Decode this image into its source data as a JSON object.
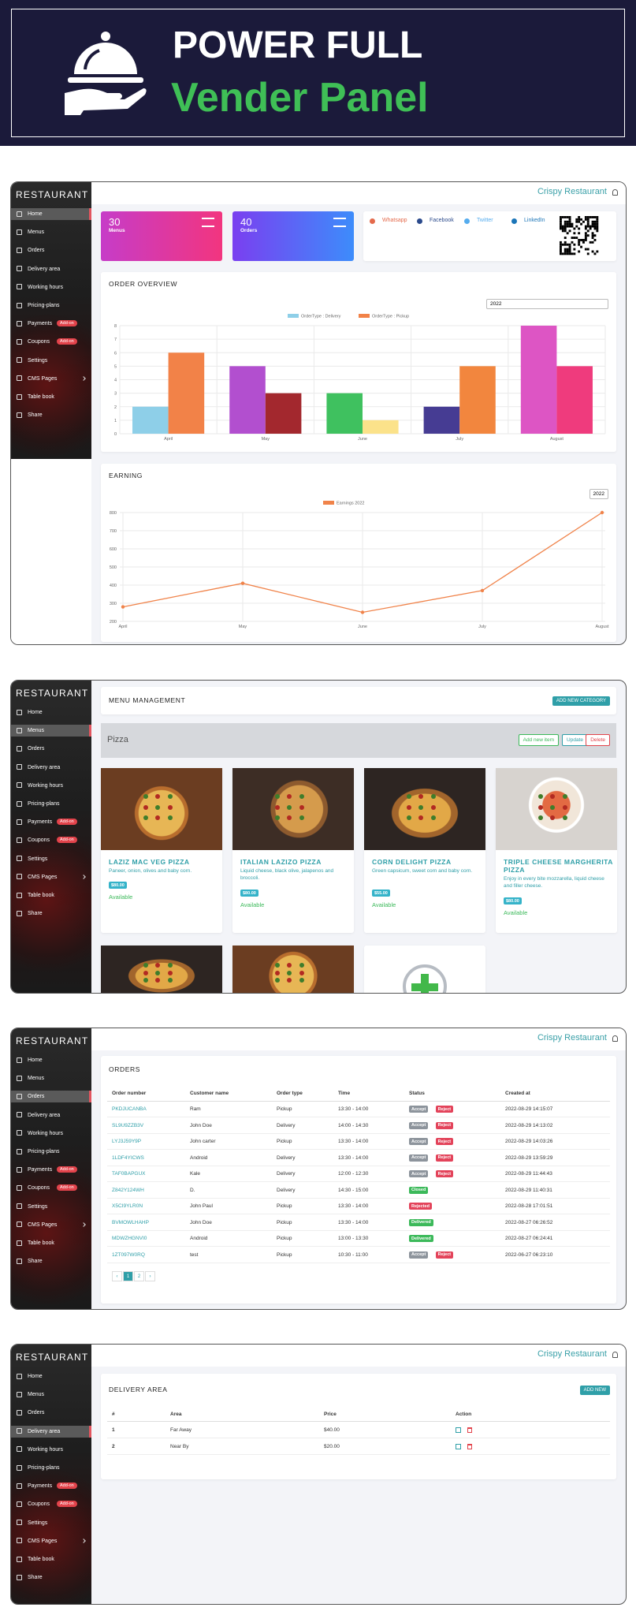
{
  "banner": {
    "line1": "POWER FULL",
    "line2": "Vender Panel"
  },
  "sidebar": {
    "brand": "RESTAURANT",
    "items": [
      "Home",
      "Menus",
      "Orders",
      "Delivery area",
      "Working hours",
      "Pricing-plans",
      "Payments",
      "Coupons",
      "Settings",
      "CMS Pages",
      "Table book",
      "Share"
    ],
    "badge": "Add-on"
  },
  "header": {
    "restaurant": "Crispy Restaurant"
  },
  "dashboard": {
    "stats": [
      {
        "value": 30,
        "label": "Menus"
      },
      {
        "value": 40,
        "label": "Orders"
      }
    ],
    "share": [
      "Whatsapp",
      "Facebook",
      "Twitter",
      "LinkedIn"
    ],
    "order_chart": {
      "type": "bar",
      "title": "ORDER OVERVIEW",
      "year": "2022",
      "categories": [
        "April",
        "May",
        "June",
        "July",
        "August"
      ],
      "series": [
        {
          "name": "OrderType : Delivery",
          "color": "#8ecfe8",
          "values": [
            2,
            5,
            3,
            2,
            8
          ],
          "bar_colors": [
            "#8ecfe8",
            "#b24fcf",
            "#3fc15f",
            "#463c93",
            "#dd55c4"
          ]
        },
        {
          "name": "OrderType : Pickup",
          "color": "#f28248",
          "values": [
            6,
            3,
            1,
            5,
            5
          ],
          "bar_colors": [
            "#f28248",
            "#a3282e",
            "#fbe28a",
            "#f2863e",
            "#ef3b7d"
          ]
        }
      ],
      "ylim": [
        0,
        8
      ],
      "yticks": [
        0,
        1,
        2,
        3,
        4,
        5,
        6,
        7,
        8
      ],
      "grid": true
    },
    "earning_chart": {
      "type": "line",
      "title": "EARNING",
      "year": "2022",
      "categories": [
        "April",
        "May",
        "June",
        "July",
        "August"
      ],
      "series": [
        {
          "name": "Earnings 2022",
          "color": "#f0834a",
          "values": [
            280,
            410,
            250,
            370,
            800
          ]
        }
      ],
      "ylim": [
        200,
        800
      ],
      "yticks": [
        200,
        300,
        400,
        500,
        600,
        700,
        800
      ],
      "grid": true
    }
  },
  "menu": {
    "title": "MENU MANAGEMENT",
    "add_category": "ADD NEW CATEGORY",
    "category": "Pizza",
    "actions": [
      "Add new item",
      "Update",
      "Delete"
    ],
    "status": "Available",
    "items": [
      {
        "name": "LAZIZ MAC VEG PIZZA",
        "description": "Paneer, onion, olives and baby corn.",
        "price": "$80.00"
      },
      {
        "name": "ITALIAN LAZIZO PIZZA",
        "description": "Liquid cheese, black olive, jalapenos and broccoli.",
        "price": "$80.00"
      },
      {
        "name": "CORN DELIGHT PIZZA",
        "description": "Green capsicum, sweet corn and baby corn.",
        "price": "$55.00"
      },
      {
        "name": "TRIPLE CHEESE MARGHERITA PIZZA",
        "description": "Enjoy in every bite mozzarella, liquid cheese and filler cheese.",
        "price": "$80.00"
      }
    ]
  },
  "orders": {
    "title": "ORDERS",
    "columns": [
      "Order number",
      "Customer name",
      "Order type",
      "Time",
      "Status",
      "Created at"
    ],
    "rows": [
      [
        "PKDJUCANBA",
        "Ram",
        "Pickup",
        "13:30 - 14:00",
        [
          "Accept",
          "Reject"
        ],
        "2022-08-29 14:15:07"
      ],
      [
        "SL9U9ZZB3V",
        "John Doe",
        "Delivery",
        "14:00 - 14:30",
        [
          "Accept",
          "Reject"
        ],
        "2022-08-29 14:13:02"
      ],
      [
        "LYJ3J59Y9P",
        "John carter",
        "Pickup",
        "13:30 - 14:00",
        [
          "Accept",
          "Reject"
        ],
        "2022-08-29 14:03:26"
      ],
      [
        "1LDF4YICWS",
        "Android",
        "Delivery",
        "13:30 - 14:00",
        [
          "Accept",
          "Reject"
        ],
        "2022-08-29 13:59:29"
      ],
      [
        "TAF0BAPGUX",
        "Kale",
        "Delivery",
        "12:00 - 12:30",
        [
          "Accept",
          "Reject"
        ],
        "2022-08-29 11:44:43"
      ],
      [
        "Z842Y124WH",
        "D.",
        "Delivery",
        "14:30 - 15:00",
        [
          "Closed"
        ],
        "2022-08-29 11:40:31"
      ],
      [
        "X5CI9YLR0N",
        "John Paul",
        "Pickup",
        "13:30 - 14:00",
        [
          "Rejected"
        ],
        "2022-08-28 17:01:51"
      ],
      [
        "BVMOWLHAHP",
        "John Doe",
        "Pickup",
        "13:30 - 14:00",
        [
          "Delivered"
        ],
        "2022-08-27 06:26:52"
      ],
      [
        "MDWZHGNVI0",
        "Android",
        "Pickup",
        "13:00 - 13:30",
        [
          "Delivered"
        ],
        "2022-08-27 06:24:41"
      ],
      [
        "1ZT097W0RQ",
        "test",
        "Pickup",
        "10:30 - 11:00",
        [
          "Accept",
          "Reject"
        ],
        "2022-06-27 06:23:10"
      ]
    ],
    "pagination": [
      "‹",
      1,
      2,
      "›"
    ]
  },
  "delivery": {
    "title": "DELIVERY AREA",
    "add": "ADD NEW",
    "columns": [
      "#",
      "Area",
      "Price",
      "Action"
    ],
    "rows": [
      [
        1,
        "Far Away",
        "$40.00"
      ],
      [
        2,
        "Near By",
        "$20.00"
      ]
    ]
  }
}
